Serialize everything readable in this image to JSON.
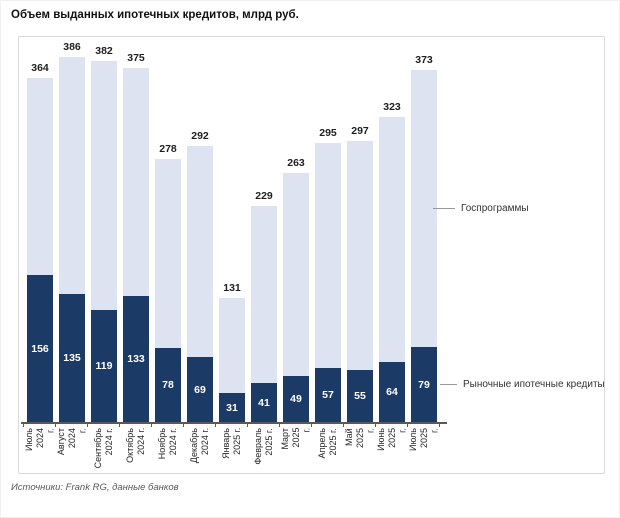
{
  "page": {
    "title": "Объем выданных ипотечных кредитов, млрд руб.",
    "source": "Источники: Frank RG, данные банков"
  },
  "chart_data": {
    "type": "bar",
    "stacked": true,
    "title": "Объем выданных ипотечных кредитов, млрд руб.",
    "unit": "млрд руб.",
    "categories": [
      "Июль 2024 г.",
      "Август 2024 г.",
      "Сентябрь 2024 г.",
      "Октябрь 2024 г.",
      "Ноябрь 2024 г.",
      "Декабрь 2024 г.",
      "Январь 2025 г.",
      "Февраль 2025 г.",
      "Март 2025 г.",
      "Апрель 2025 г.",
      "Май 2025 г.",
      "Июнь 2025 г.",
      "Июль 2025 г."
    ],
    "tick_lines": [
      "Июль\n2024\nг.",
      "Август\n2024\nг.",
      "Сентябрь\n2024 г.",
      "Октябрь\n2024 г.",
      "Ноябрь\n2024 г.",
      "Декабрь\n2024 г.",
      "Январь\n2025 г.",
      "Февраль\n2025 г.",
      "Март\n2025\nг.",
      "Апрель\n2025 г.",
      "Май\n2025\nг.",
      "Июнь\n2025\nг.",
      "Июль\n2025\nг."
    ],
    "totals": [
      364,
      386,
      382,
      375,
      278,
      292,
      131,
      229,
      263,
      295,
      297,
      323,
      373
    ],
    "series": [
      {
        "name": "Рыночные ипотечные кредиты",
        "values": [
          156,
          135,
          119,
          133,
          78,
          69,
          31,
          41,
          49,
          57,
          55,
          64,
          79
        ],
        "color": "#1b3a66"
      },
      {
        "name": "Госпрограммы",
        "color": "#dde3f1"
      }
    ],
    "annotations": {
      "gov": "Госпрограммы",
      "market": "Рыночные ипотечные кредиты"
    },
    "colors": {
      "gov": "#dde3f1",
      "market": "#1b3a66",
      "axis": "#595959"
    },
    "legend_position": "right-callouts",
    "grid": false,
    "value_labels": {
      "totals": "above bars",
      "market": "inside dark segment"
    }
  }
}
